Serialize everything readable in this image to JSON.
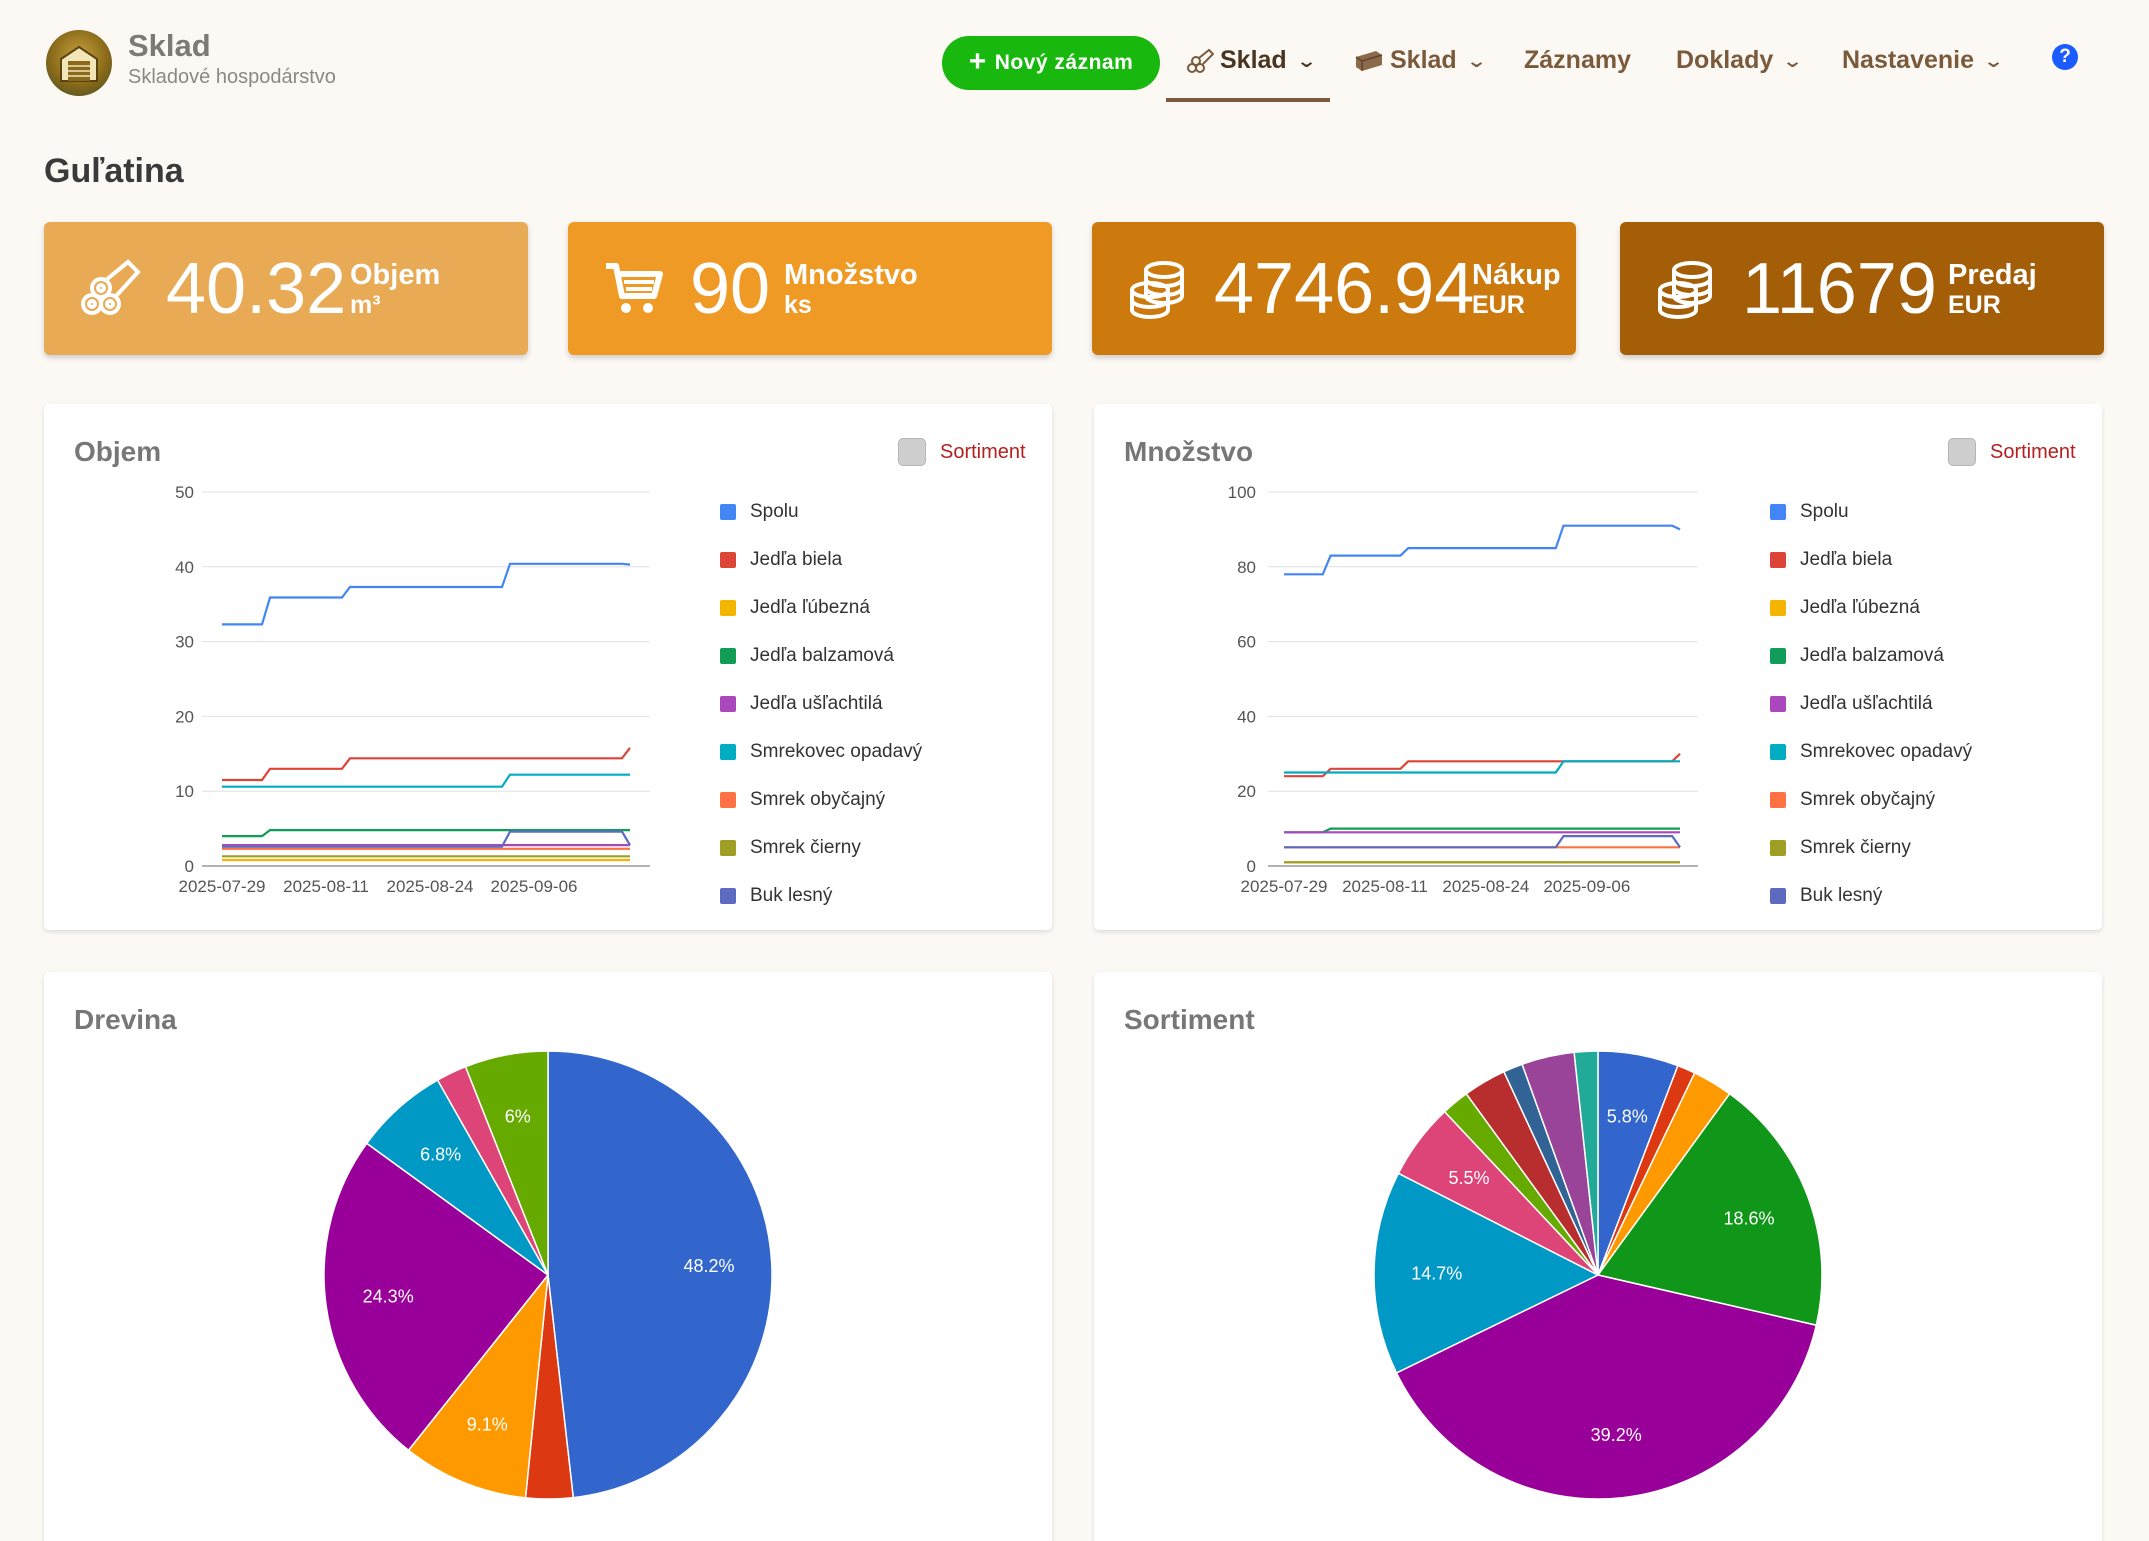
{
  "app": {
    "title": "Sklad",
    "subtitle": "Skladové hospodárstvo"
  },
  "nav": {
    "new_record": "Nový záznam",
    "items": [
      {
        "label": "Sklad",
        "icon": "logs-icon",
        "active": true,
        "has_dropdown": true
      },
      {
        "label": "Sklad",
        "icon": "boards-icon",
        "active": false,
        "has_dropdown": true
      },
      {
        "label": "Záznamy",
        "icon": "",
        "active": false,
        "has_dropdown": false
      },
      {
        "label": "Doklady",
        "icon": "",
        "active": false,
        "has_dropdown": true
      },
      {
        "label": "Nastavenie",
        "icon": "",
        "active": false,
        "has_dropdown": true
      }
    ],
    "help": "?"
  },
  "page": {
    "title": "Guľatina"
  },
  "stats": [
    {
      "value": "40.32",
      "label": "Objem",
      "unit": "m³",
      "icon": "logs-icon",
      "color": "#e8aa55"
    },
    {
      "value": "90",
      "label": "Množstvo",
      "unit": "ks",
      "icon": "cart-icon",
      "color": "#f09a26"
    },
    {
      "value": "4746.94",
      "label": "Nákup",
      "unit": "EUR",
      "icon": "coins-icon",
      "color": "#cc7a0e"
    },
    {
      "value": "11679",
      "label": "Predaj",
      "unit": "EUR",
      "icon": "coins-icon",
      "color": "#a35e07"
    }
  ],
  "toggle_label": "Sortiment",
  "legend": [
    {
      "name": "Spolu",
      "color": "#4285f4"
    },
    {
      "name": "Jedľa biela",
      "color": "#db4437"
    },
    {
      "name": "Jedľa ľúbezná",
      "color": "#f4b400"
    },
    {
      "name": "Jedľa balzamová",
      "color": "#0f9d58"
    },
    {
      "name": "Jedľa ušľachtilá",
      "color": "#ab47bc"
    },
    {
      "name": "Smrekovec opadavý",
      "color": "#00acc1"
    },
    {
      "name": "Smrek obyčajný",
      "color": "#ff7043"
    },
    {
      "name": "Smrek čierny",
      "color": "#9e9d24"
    },
    {
      "name": "Buk lesný",
      "color": "#5c6bc0"
    }
  ],
  "chart_data": [
    {
      "type": "line",
      "title": "Objem",
      "x_ticks": [
        "2025-07-29",
        "2025-08-11",
        "2025-08-24",
        "2025-09-06"
      ],
      "x": [
        "2025-07-29",
        "2025-08-03",
        "2025-08-04",
        "2025-08-13",
        "2025-08-14",
        "2025-09-02",
        "2025-09-03",
        "2025-09-17",
        "2025-09-18"
      ],
      "ylim": [
        0,
        50
      ],
      "y_ticks": [
        0,
        10,
        20,
        30,
        40,
        50
      ],
      "series": [
        {
          "name": "Spolu",
          "values": [
            32.3,
            32.3,
            35.9,
            35.9,
            37.3,
            37.3,
            40.4,
            40.4,
            40.3
          ]
        },
        {
          "name": "Jedľa biela",
          "values": [
            11.5,
            11.5,
            13.0,
            13.0,
            14.4,
            14.4,
            14.4,
            14.4,
            15.8
          ]
        },
        {
          "name": "Jedľa ľúbezná",
          "values": [
            0.8,
            0.8,
            0.8,
            0.8,
            0.8,
            0.8,
            0.8,
            0.8,
            0.8
          ]
        },
        {
          "name": "Jedľa balzamová",
          "values": [
            4.0,
            4.0,
            4.8,
            4.8,
            4.8,
            4.8,
            4.8,
            4.8,
            4.8
          ]
        },
        {
          "name": "Jedľa ušľachtilá",
          "values": [
            2.8,
            2.8,
            2.8,
            2.8,
            2.8,
            2.8,
            2.8,
            2.8,
            2.8
          ]
        },
        {
          "name": "Smrekovec opadavý",
          "values": [
            10.6,
            10.6,
            10.6,
            10.6,
            10.6,
            10.6,
            12.2,
            12.2,
            12.2
          ]
        },
        {
          "name": "Smrek obyčajný",
          "values": [
            2.3,
            2.3,
            2.3,
            2.3,
            2.3,
            2.3,
            2.3,
            2.3,
            2.3
          ]
        },
        {
          "name": "Smrek čierny",
          "values": [
            1.3,
            1.3,
            1.3,
            1.3,
            1.3,
            1.3,
            1.3,
            1.3,
            1.3
          ]
        },
        {
          "name": "Buk lesný",
          "values": [
            2.6,
            2.6,
            2.6,
            2.6,
            2.6,
            2.6,
            4.6,
            4.6,
            2.8
          ]
        }
      ]
    },
    {
      "type": "line",
      "title": "Množstvo",
      "x_ticks": [
        "2025-07-29",
        "2025-08-11",
        "2025-08-24",
        "2025-09-06"
      ],
      "x": [
        "2025-07-29",
        "2025-08-03",
        "2025-08-04",
        "2025-08-13",
        "2025-08-14",
        "2025-09-02",
        "2025-09-03",
        "2025-09-17",
        "2025-09-18"
      ],
      "ylim": [
        0,
        100
      ],
      "y_ticks": [
        0,
        20,
        40,
        60,
        80,
        100
      ],
      "series": [
        {
          "name": "Spolu",
          "values": [
            78,
            78,
            83,
            83,
            85,
            85,
            91,
            91,
            90
          ]
        },
        {
          "name": "Jedľa biela",
          "values": [
            24,
            24,
            26,
            26,
            28,
            28,
            28,
            28,
            30
          ]
        },
        {
          "name": "Jedľa ľúbezná",
          "values": [
            1,
            1,
            1,
            1,
            1,
            1,
            1,
            1,
            1
          ]
        },
        {
          "name": "Jedľa balzamová",
          "values": [
            9,
            9,
            10,
            10,
            10,
            10,
            10,
            10,
            10
          ]
        },
        {
          "name": "Jedľa ušľachtilá",
          "values": [
            9,
            9,
            9,
            9,
            9,
            9,
            9,
            9,
            9
          ]
        },
        {
          "name": "Smrekovec opadavý",
          "values": [
            25,
            25,
            25,
            25,
            25,
            25,
            28,
            28,
            28
          ]
        },
        {
          "name": "Smrek obyčajný",
          "values": [
            5,
            5,
            5,
            5,
            5,
            5,
            5,
            5,
            5
          ]
        },
        {
          "name": "Smrek čierny",
          "values": [
            1,
            1,
            1,
            1,
            1,
            1,
            1,
            1,
            1
          ]
        },
        {
          "name": "Buk lesný",
          "values": [
            5,
            5,
            5,
            5,
            5,
            5,
            8,
            8,
            5
          ]
        }
      ]
    },
    {
      "type": "pie",
      "title": "Drevina",
      "slices": [
        {
          "value": 48.2,
          "label": "48.2%",
          "color": "#3366cc"
        },
        {
          "value": 3.4,
          "label": "",
          "color": "#dc3912"
        },
        {
          "value": 9.1,
          "label": "9.1%",
          "color": "#ff9900"
        },
        {
          "value": 24.3,
          "label": "24.3%",
          "color": "#990099"
        },
        {
          "value": 6.8,
          "label": "6.8%",
          "color": "#0099c6"
        },
        {
          "value": 2.2,
          "label": "",
          "color": "#dd4477"
        },
        {
          "value": 6.0,
          "label": "6%",
          "color": "#66aa00"
        }
      ]
    },
    {
      "type": "pie",
      "title": "Sortiment",
      "slices": [
        {
          "value": 5.8,
          "label": "5.8%",
          "color": "#3366cc"
        },
        {
          "value": 1.3,
          "label": "",
          "color": "#dc3912"
        },
        {
          "value": 2.9,
          "label": "",
          "color": "#ff9900"
        },
        {
          "value": 18.6,
          "label": "18.6%",
          "color": "#109618"
        },
        {
          "value": 39.2,
          "label": "39.2%",
          "color": "#990099"
        },
        {
          "value": 14.7,
          "label": "14.7%",
          "color": "#0099c6"
        },
        {
          "value": 5.5,
          "label": "5.5%",
          "color": "#dd4477"
        },
        {
          "value": 2.0,
          "label": "",
          "color": "#66aa00"
        },
        {
          "value": 3.1,
          "label": "",
          "color": "#b82e2e"
        },
        {
          "value": 1.4,
          "label": "",
          "color": "#316395"
        },
        {
          "value": 3.8,
          "label": "",
          "color": "#994499"
        },
        {
          "value": 1.7,
          "label": "",
          "color": "#22aa99"
        }
      ]
    }
  ]
}
